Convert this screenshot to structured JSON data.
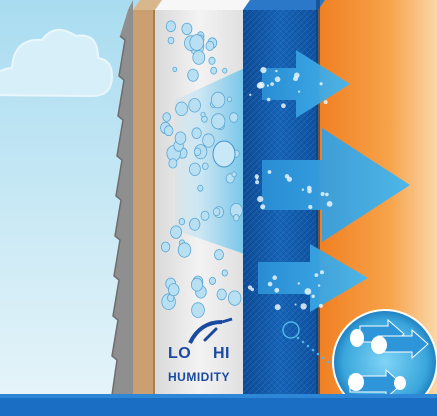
{
  "gauge": {
    "low_label": "LO",
    "high_label": "HI",
    "caption": "HUMIDITY"
  },
  "icons": [
    "cloud-icon",
    "humidity-gauge-icon",
    "vapor-arrow-icon",
    "water-droplet-icon",
    "magnifier-lens-icon"
  ],
  "colors": {
    "sky": "#bfe4f3",
    "wall_board": "#ececec",
    "membrane": "#1560b4",
    "interior": "#f59a3a",
    "arrow": "#2ea8e6",
    "floor_line": "#1a6fc4",
    "text": "#1a4aa0"
  }
}
